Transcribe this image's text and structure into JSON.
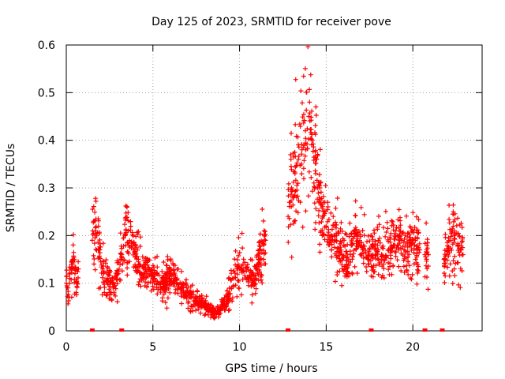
{
  "chart_data": {
    "type": "scatter",
    "title": "Day 125 of 2023, SRMTID for receiver pove",
    "xlabel": "GPS time / hours",
    "ylabel": "SRMTID / TECUs",
    "xlim": [
      0,
      24
    ],
    "ylim": [
      0,
      0.6
    ],
    "xticks": [
      0,
      5,
      10,
      15,
      20
    ],
    "xtick_labels": [
      "0",
      "5",
      "10",
      "15",
      "20"
    ],
    "yticks": [
      0,
      0.1,
      0.2,
      0.3,
      0.4,
      0.5,
      0.6
    ],
    "ytick_labels": [
      "0",
      "0.1",
      "0.2",
      "0.3",
      "0.4",
      "0.5",
      "0.6"
    ],
    "grid": true,
    "marker": "+",
    "series_color": "#ff0000",
    "series": [
      {
        "name": "SRMTID",
        "segments": [
          {
            "x_start": 0.0,
            "x_end": 0.7,
            "points": [
              [
                0.0,
                0.1
              ],
              [
                0.1,
                0.09
              ],
              [
                0.2,
                0.11
              ],
              [
                0.3,
                0.13
              ],
              [
                0.4,
                0.15
              ],
              [
                0.5,
                0.12
              ],
              [
                0.6,
                0.1
              ],
              [
                0.7,
                0.13
              ]
            ]
          },
          {
            "x_start": 1.5,
            "x_end": 11.5,
            "points": [
              [
                1.5,
                0.19
              ],
              [
                1.7,
                0.21
              ],
              [
                1.9,
                0.17
              ],
              [
                2.1,
                0.13
              ],
              [
                2.4,
                0.11
              ],
              [
                2.7,
                0.09
              ],
              [
                3.0,
                0.12
              ],
              [
                3.2,
                0.16
              ],
              [
                3.4,
                0.2
              ],
              [
                3.6,
                0.18
              ],
              [
                3.9,
                0.17
              ],
              [
                4.2,
                0.14
              ],
              [
                4.5,
                0.12
              ],
              [
                4.8,
                0.13
              ],
              [
                5.1,
                0.11
              ],
              [
                5.4,
                0.1
              ],
              [
                5.7,
                0.1
              ],
              [
                6.0,
                0.12
              ],
              [
                6.3,
                0.11
              ],
              [
                6.6,
                0.09
              ],
              [
                6.9,
                0.08
              ],
              [
                7.2,
                0.07
              ],
              [
                7.5,
                0.06
              ],
              [
                7.8,
                0.06
              ],
              [
                8.1,
                0.05
              ],
              [
                8.4,
                0.04
              ],
              [
                8.7,
                0.04
              ],
              [
                9.0,
                0.05
              ],
              [
                9.3,
                0.07
              ],
              [
                9.6,
                0.11
              ],
              [
                9.9,
                0.13
              ],
              [
                10.2,
                0.14
              ],
              [
                10.5,
                0.11
              ],
              [
                10.8,
                0.1
              ],
              [
                11.1,
                0.14
              ],
              [
                11.4,
                0.18
              ],
              [
                11.5,
                0.19
              ]
            ]
          },
          {
            "x_start": 12.8,
            "x_end": 20.4,
            "points": [
              [
                12.8,
                0.24
              ],
              [
                13.0,
                0.3
              ],
              [
                13.2,
                0.33
              ],
              [
                13.4,
                0.36
              ],
              [
                13.6,
                0.38
              ],
              [
                13.8,
                0.42
              ],
              [
                14.0,
                0.45
              ],
              [
                14.2,
                0.4
              ],
              [
                14.4,
                0.33
              ],
              [
                14.6,
                0.28
              ],
              [
                14.8,
                0.24
              ],
              [
                15.0,
                0.22
              ],
              [
                15.3,
                0.19
              ],
              [
                15.6,
                0.2
              ],
              [
                15.9,
                0.16
              ],
              [
                16.2,
                0.14
              ],
              [
                16.5,
                0.18
              ],
              [
                16.8,
                0.2
              ],
              [
                17.1,
                0.17
              ],
              [
                17.4,
                0.15
              ],
              [
                17.7,
                0.16
              ],
              [
                18.0,
                0.17
              ],
              [
                18.3,
                0.15
              ],
              [
                18.6,
                0.17
              ],
              [
                18.9,
                0.18
              ],
              [
                19.2,
                0.2
              ],
              [
                19.5,
                0.17
              ],
              [
                19.8,
                0.19
              ],
              [
                20.1,
                0.18
              ],
              [
                20.4,
                0.17
              ]
            ]
          },
          {
            "x_start": 20.7,
            "x_end": 20.9,
            "points": [
              [
                20.7,
                0.16
              ],
              [
                20.8,
                0.17
              ],
              [
                20.9,
                0.16
              ]
            ]
          },
          {
            "x_start": 21.8,
            "x_end": 22.9,
            "points": [
              [
                21.8,
                0.15
              ],
              [
                22.0,
                0.17
              ],
              [
                22.2,
                0.19
              ],
              [
                22.4,
                0.21
              ],
              [
                22.6,
                0.18
              ],
              [
                22.8,
                0.17
              ],
              [
                22.9,
                0.16
              ]
            ]
          }
        ]
      }
    ],
    "zero_markers_x": [
      1.5,
      3.2,
      12.8,
      17.6,
      20.7,
      21.7
    ]
  }
}
